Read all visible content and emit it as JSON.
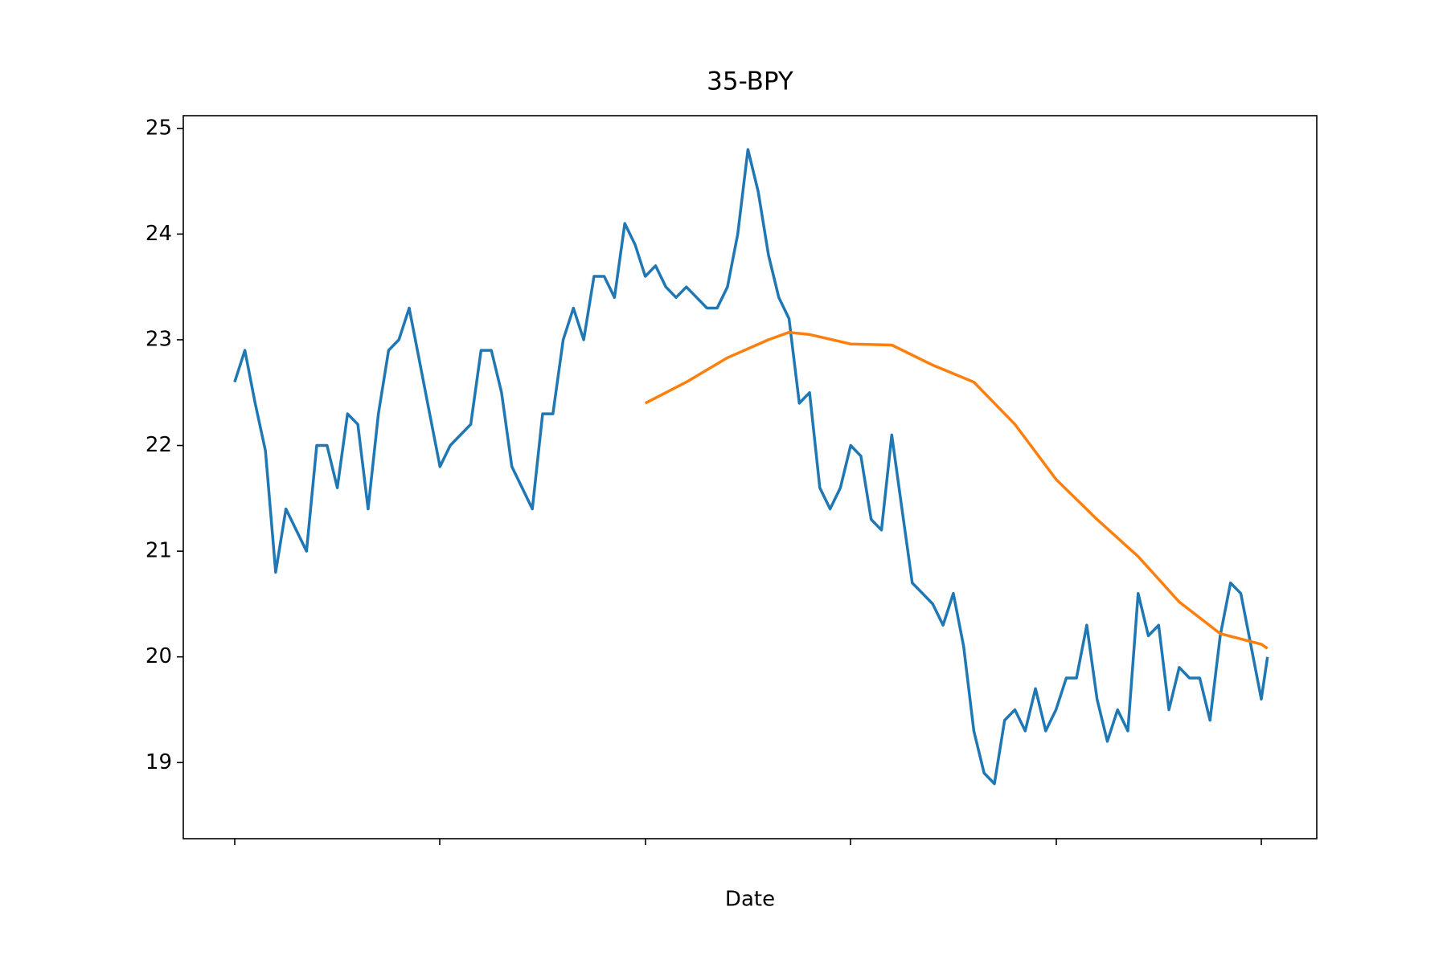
{
  "chart_data": {
    "type": "line",
    "title": "35-BPY",
    "x_label": "Date",
    "series": [
      {
        "color": "#1f77b4",
        "x": [
          0,
          5,
          10,
          15,
          20,
          25,
          30,
          35,
          40,
          45,
          50,
          55,
          60,
          65,
          70,
          75,
          80,
          85,
          90,
          95,
          100,
          105,
          110,
          115,
          120,
          125,
          130,
          135,
          140,
          145,
          150,
          155,
          160,
          165,
          170,
          175,
          180,
          185,
          190,
          195,
          200,
          205,
          210,
          215,
          220,
          225,
          230,
          235,
          240,
          245,
          250,
          255,
          260,
          265,
          270,
          275,
          280,
          285,
          290,
          295,
          300,
          305,
          310,
          315,
          320,
          325,
          330,
          335,
          340,
          345,
          350,
          355,
          360,
          365,
          370,
          375,
          380,
          385,
          390,
          395,
          400,
          405,
          410,
          415,
          420,
          425,
          430,
          435,
          440,
          445,
          450,
          455,
          460,
          465,
          470,
          475,
          480,
          485,
          490,
          495,
          500,
          503
        ],
        "values": [
          22.6,
          22.9,
          22.4,
          21.95,
          20.8,
          21.4,
          21.2,
          21.0,
          22.0,
          22.0,
          21.6,
          22.3,
          22.2,
          21.4,
          22.3,
          22.9,
          23.0,
          23.3,
          22.8,
          22.3,
          21.8,
          22.0,
          22.1,
          22.2,
          22.9,
          22.9,
          22.5,
          21.8,
          21.6,
          21.4,
          22.3,
          22.3,
          23.0,
          23.3,
          23.0,
          23.6,
          23.6,
          23.4,
          24.1,
          23.9,
          23.6,
          23.7,
          23.5,
          23.4,
          23.5,
          23.4,
          23.3,
          23.3,
          23.5,
          24.0,
          24.8,
          24.4,
          23.8,
          23.4,
          23.2,
          22.4,
          22.5,
          21.6,
          21.4,
          21.6,
          22.0,
          21.9,
          21.3,
          21.2,
          22.1,
          21.4,
          20.7,
          20.6,
          20.5,
          20.3,
          20.6,
          20.1,
          19.3,
          18.9,
          18.8,
          19.4,
          19.5,
          19.3,
          19.7,
          19.3,
          19.5,
          19.8,
          19.8,
          20.3,
          19.6,
          19.2,
          19.5,
          19.3,
          20.6,
          20.2,
          20.3,
          19.5,
          19.9,
          19.8,
          19.8,
          19.4,
          20.2,
          20.7,
          20.6,
          20.1,
          19.6,
          20.0
        ]
      },
      {
        "color": "#ff7f0e",
        "x": [
          200,
          220,
          240,
          260,
          270,
          280,
          300,
          320,
          340,
          360,
          380,
          400,
          420,
          440,
          460,
          480,
          500,
          503
        ],
        "values": [
          22.4,
          22.6,
          22.83,
          23.0,
          23.07,
          23.05,
          22.96,
          22.95,
          22.76,
          22.6,
          22.2,
          21.68,
          21.3,
          20.95,
          20.52,
          20.22,
          20.12,
          20.08
        ]
      }
    ],
    "xlim": [
      -25,
      527
    ],
    "ylim": [
      18.28,
      25.12
    ],
    "yticks": [
      19,
      20,
      21,
      22,
      23,
      24,
      25
    ]
  }
}
